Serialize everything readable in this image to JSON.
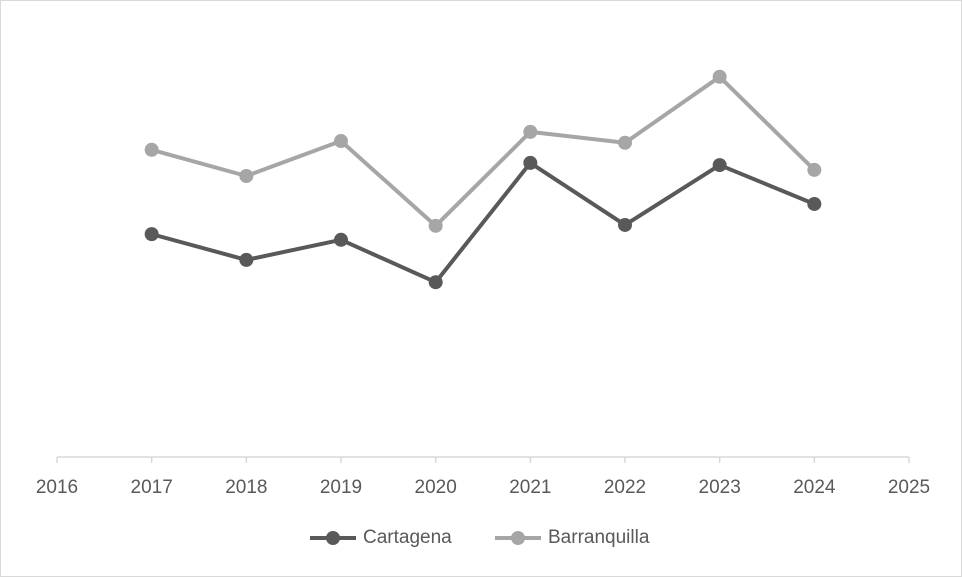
{
  "chart_data": {
    "type": "line",
    "x": [
      2017,
      2018,
      2019,
      2020,
      2021,
      2022,
      2023,
      2024
    ],
    "xlim": [
      2016,
      2025
    ],
    "xticks": [
      2016,
      2017,
      2018,
      2019,
      2020,
      2021,
      2022,
      2023,
      2024,
      2025
    ],
    "ylim": [
      0,
      100
    ],
    "series": [
      {
        "name": "Cartagena",
        "color": "#595959",
        "values": [
          51.0,
          45.1,
          49.7,
          40.0,
          67.3,
          53.1,
          66.8,
          57.9
        ]
      },
      {
        "name": "Barranquilla",
        "color": "#a6a6a6",
        "values": [
          70.3,
          64.3,
          72.3,
          52.9,
          74.4,
          71.9,
          87.0,
          65.7
        ]
      }
    ],
    "legend": "bottom"
  }
}
